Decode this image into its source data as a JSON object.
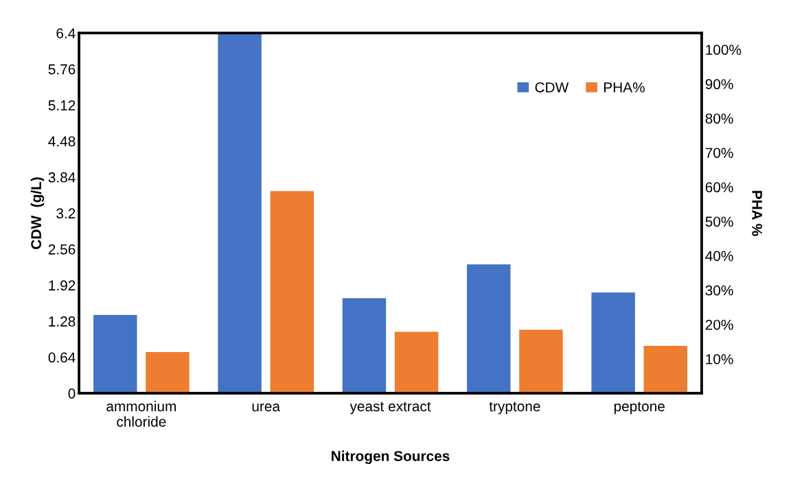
{
  "chart_data": {
    "type": "bar",
    "xlabel": "Nitrogen Sources",
    "ylabel": "CDW  (g/L)",
    "y2label": "PHA %",
    "categories": [
      "ammonium\nchloride",
      "urea",
      "yeast extract",
      "tryptone",
      "peptone"
    ],
    "series": [
      {
        "name": "CDW",
        "color": "#4472c4",
        "values": [
          1.39,
          6.4,
          1.69,
          2.29,
          1.79
        ]
      },
      {
        "name": "PHA%",
        "color": "#ed7d31",
        "axis": "y2",
        "values": [
          12,
          58.8,
          17.9,
          18.5,
          13.8
        ]
      }
    ],
    "ylim": [
      0,
      6.4
    ],
    "yticks": [
      0,
      0.64,
      1.28,
      1.92,
      2.56,
      3.2,
      3.84,
      4.48,
      5.12,
      5.76,
      6.4
    ],
    "y2lim": [
      0,
      104.8
    ],
    "y2ticks": [
      {
        "value": 10,
        "label": "10%"
      },
      {
        "value": 20,
        "label": "20%"
      },
      {
        "value": 30,
        "label": "30%"
      },
      {
        "value": 40,
        "label": "40%"
      },
      {
        "value": 50,
        "label": "50%"
      },
      {
        "value": 60,
        "label": "60%"
      },
      {
        "value": 70,
        "label": "70%"
      },
      {
        "value": 80,
        "label": "80%"
      },
      {
        "value": 90,
        "label": "90%"
      },
      {
        "value": 100,
        "label": "100%"
      }
    ],
    "legend": "top right",
    "grid": false
  }
}
